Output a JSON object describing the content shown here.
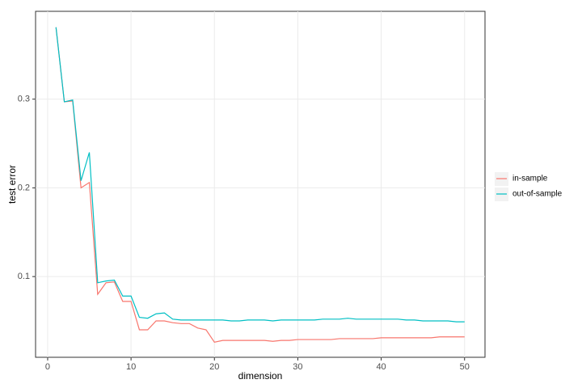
{
  "chart_data": {
    "type": "line",
    "x_label": "dimension",
    "y_label": "test error",
    "x": [
      1,
      2,
      3,
      4,
      5,
      6,
      7,
      8,
      9,
      10,
      11,
      12,
      13,
      14,
      15,
      16,
      17,
      18,
      19,
      20,
      21,
      22,
      23,
      24,
      25,
      26,
      27,
      28,
      29,
      30,
      31,
      32,
      33,
      34,
      35,
      36,
      37,
      38,
      39,
      40,
      41,
      42,
      43,
      44,
      45,
      46,
      47,
      48,
      49,
      50
    ],
    "series": [
      {
        "name": "in-sample",
        "color": "#F8766D",
        "values": [
          0.381,
          0.297,
          0.298,
          0.2,
          0.206,
          0.08,
          0.093,
          0.094,
          0.072,
          0.072,
          0.04,
          0.04,
          0.05,
          0.05,
          0.048,
          0.047,
          0.047,
          0.042,
          0.04,
          0.026,
          0.028,
          0.028,
          0.028,
          0.028,
          0.028,
          0.028,
          0.027,
          0.028,
          0.028,
          0.029,
          0.029,
          0.029,
          0.029,
          0.029,
          0.03,
          0.03,
          0.03,
          0.03,
          0.03,
          0.031,
          0.031,
          0.031,
          0.031,
          0.031,
          0.031,
          0.031,
          0.032,
          0.032,
          0.032,
          0.032
        ]
      },
      {
        "name": "out-of-sample",
        "color": "#00BFC4",
        "values": [
          0.381,
          0.297,
          0.299,
          0.208,
          0.24,
          0.093,
          0.095,
          0.096,
          0.078,
          0.078,
          0.054,
          0.053,
          0.058,
          0.059,
          0.052,
          0.051,
          0.051,
          0.051,
          0.051,
          0.051,
          0.051,
          0.05,
          0.05,
          0.051,
          0.051,
          0.051,
          0.05,
          0.051,
          0.051,
          0.051,
          0.051,
          0.051,
          0.052,
          0.052,
          0.052,
          0.053,
          0.052,
          0.052,
          0.052,
          0.052,
          0.052,
          0.052,
          0.051,
          0.051,
          0.05,
          0.05,
          0.05,
          0.05,
          0.049,
          0.049
        ]
      }
    ],
    "xlim": [
      -1.45,
      52.45
    ],
    "ylim": [
      0.009,
      0.399
    ],
    "xticks": [
      0,
      10,
      20,
      30,
      40,
      50
    ],
    "yticks": [
      0.1,
      0.2,
      0.3
    ],
    "grid": true,
    "legend": "right"
  }
}
